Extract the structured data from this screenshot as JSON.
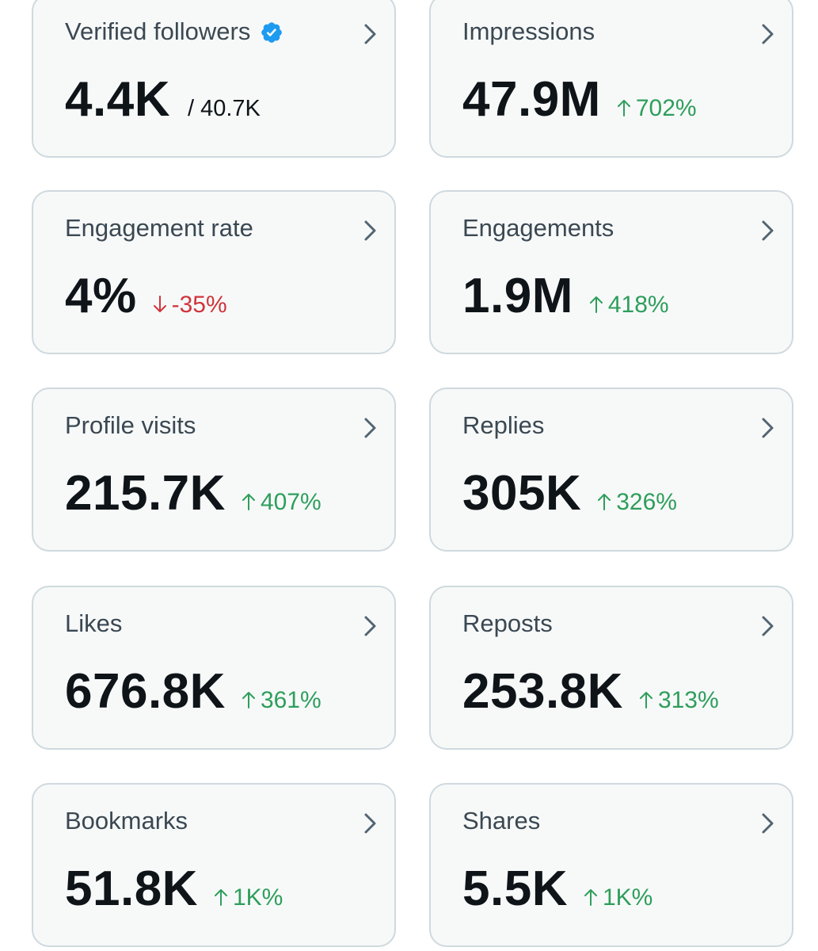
{
  "colors": {
    "up": "#2e9e5b",
    "down": "#d0343b",
    "verified_badge": "#1d9bf0",
    "card_border": "#cfd9de",
    "card_background": "#f7f9f9"
  },
  "cards": [
    {
      "title": "Verified followers",
      "value": "4.4K",
      "sub": "/ 40.7K",
      "icon": "verified-badge-icon"
    },
    {
      "title": "Impressions",
      "value": "47.9M",
      "change": "702%",
      "direction": "up"
    },
    {
      "title": "Engagement rate",
      "value": "4%",
      "change": "-35%",
      "direction": "down"
    },
    {
      "title": "Engagements",
      "value": "1.9M",
      "change": "418%",
      "direction": "up"
    },
    {
      "title": "Profile visits",
      "value": "215.7K",
      "change": "407%",
      "direction": "up"
    },
    {
      "title": "Replies",
      "value": "305K",
      "change": "326%",
      "direction": "up"
    },
    {
      "title": "Likes",
      "value": "676.8K",
      "change": "361%",
      "direction": "up"
    },
    {
      "title": "Reposts",
      "value": "253.8K",
      "change": "313%",
      "direction": "up"
    },
    {
      "title": "Bookmarks",
      "value": "51.8K",
      "change": "1K%",
      "direction": "up"
    },
    {
      "title": "Shares",
      "value": "5.5K",
      "change": "1K%",
      "direction": "up"
    }
  ]
}
